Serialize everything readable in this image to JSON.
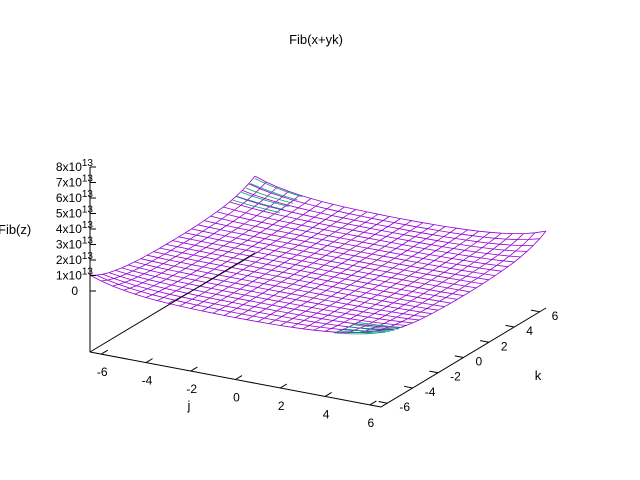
{
  "chart_data": {
    "type": "surface",
    "title": "Fib(x+yk)",
    "xlabel": "j",
    "ylabel": "k",
    "zlabel": "Fib(z)",
    "x_ticks": [
      "-6",
      "-4",
      "-2",
      "0",
      "2",
      "4",
      "6"
    ],
    "y_ticks": [
      "-6",
      "-4",
      "-2",
      "0",
      "2",
      "4",
      "6"
    ],
    "z_ticks": [
      {
        "base": "0",
        "exp": ""
      },
      {
        "base": "1x10",
        "exp": "13"
      },
      {
        "base": "2x10",
        "exp": "13"
      },
      {
        "base": "3x10",
        "exp": "13"
      },
      {
        "base": "4x10",
        "exp": "13"
      },
      {
        "base": "5x10",
        "exp": "13"
      },
      {
        "base": "6x10",
        "exp": "13"
      },
      {
        "base": "7x10",
        "exp": "13"
      },
      {
        "base": "8x10",
        "exp": "13"
      }
    ],
    "xlim": [
      -6.5,
      6.5
    ],
    "ylim": [
      -6.5,
      6.5
    ],
    "zlim": [
      0,
      80000000000000
    ],
    "colors": {
      "top": "#9400d3",
      "bottom": "#009e73"
    }
  }
}
